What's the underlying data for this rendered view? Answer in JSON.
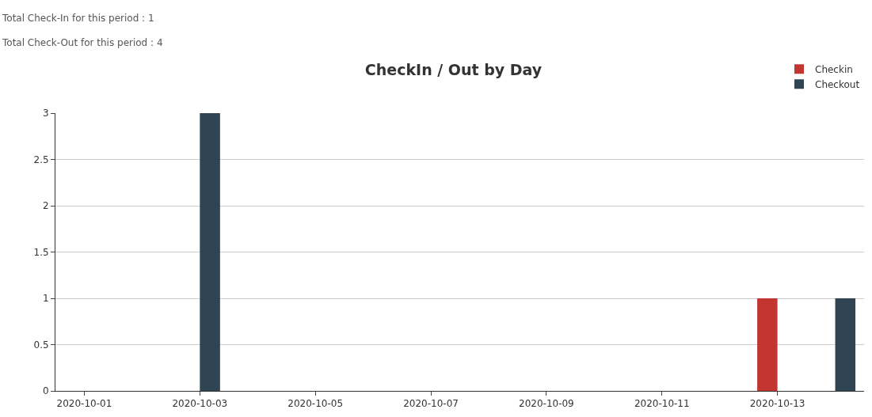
{
  "chart_data": {
    "type": "bar",
    "title": "CheckIn / Out by Day",
    "annotations": [
      "Total Check-In for this period : 1",
      "Total Check-Out for this period : 4"
    ],
    "categories": [
      "2020-10-01",
      null,
      "2020-10-03",
      null,
      "2020-10-05",
      null,
      "2020-10-07",
      null,
      "2020-10-09",
      null,
      "2020-10-11",
      null,
      "2020-10-13",
      null
    ],
    "series": [
      {
        "name": "Checkin",
        "color": "#c23531",
        "values": [
          0,
          0,
          0,
          0,
          0,
          0,
          0,
          0,
          0,
          0,
          0,
          0,
          1,
          0
        ]
      },
      {
        "name": "Checkout",
        "color": "#2f4554",
        "values": [
          0,
          0,
          3,
          0,
          0,
          0,
          0,
          0,
          0,
          0,
          0,
          0,
          0,
          1
        ]
      }
    ],
    "ylim": [
      0,
      3
    ],
    "yticks": [
      0,
      0.5,
      1,
      1.5,
      2,
      2.5,
      3
    ],
    "grid": "y",
    "legend": "top right"
  }
}
